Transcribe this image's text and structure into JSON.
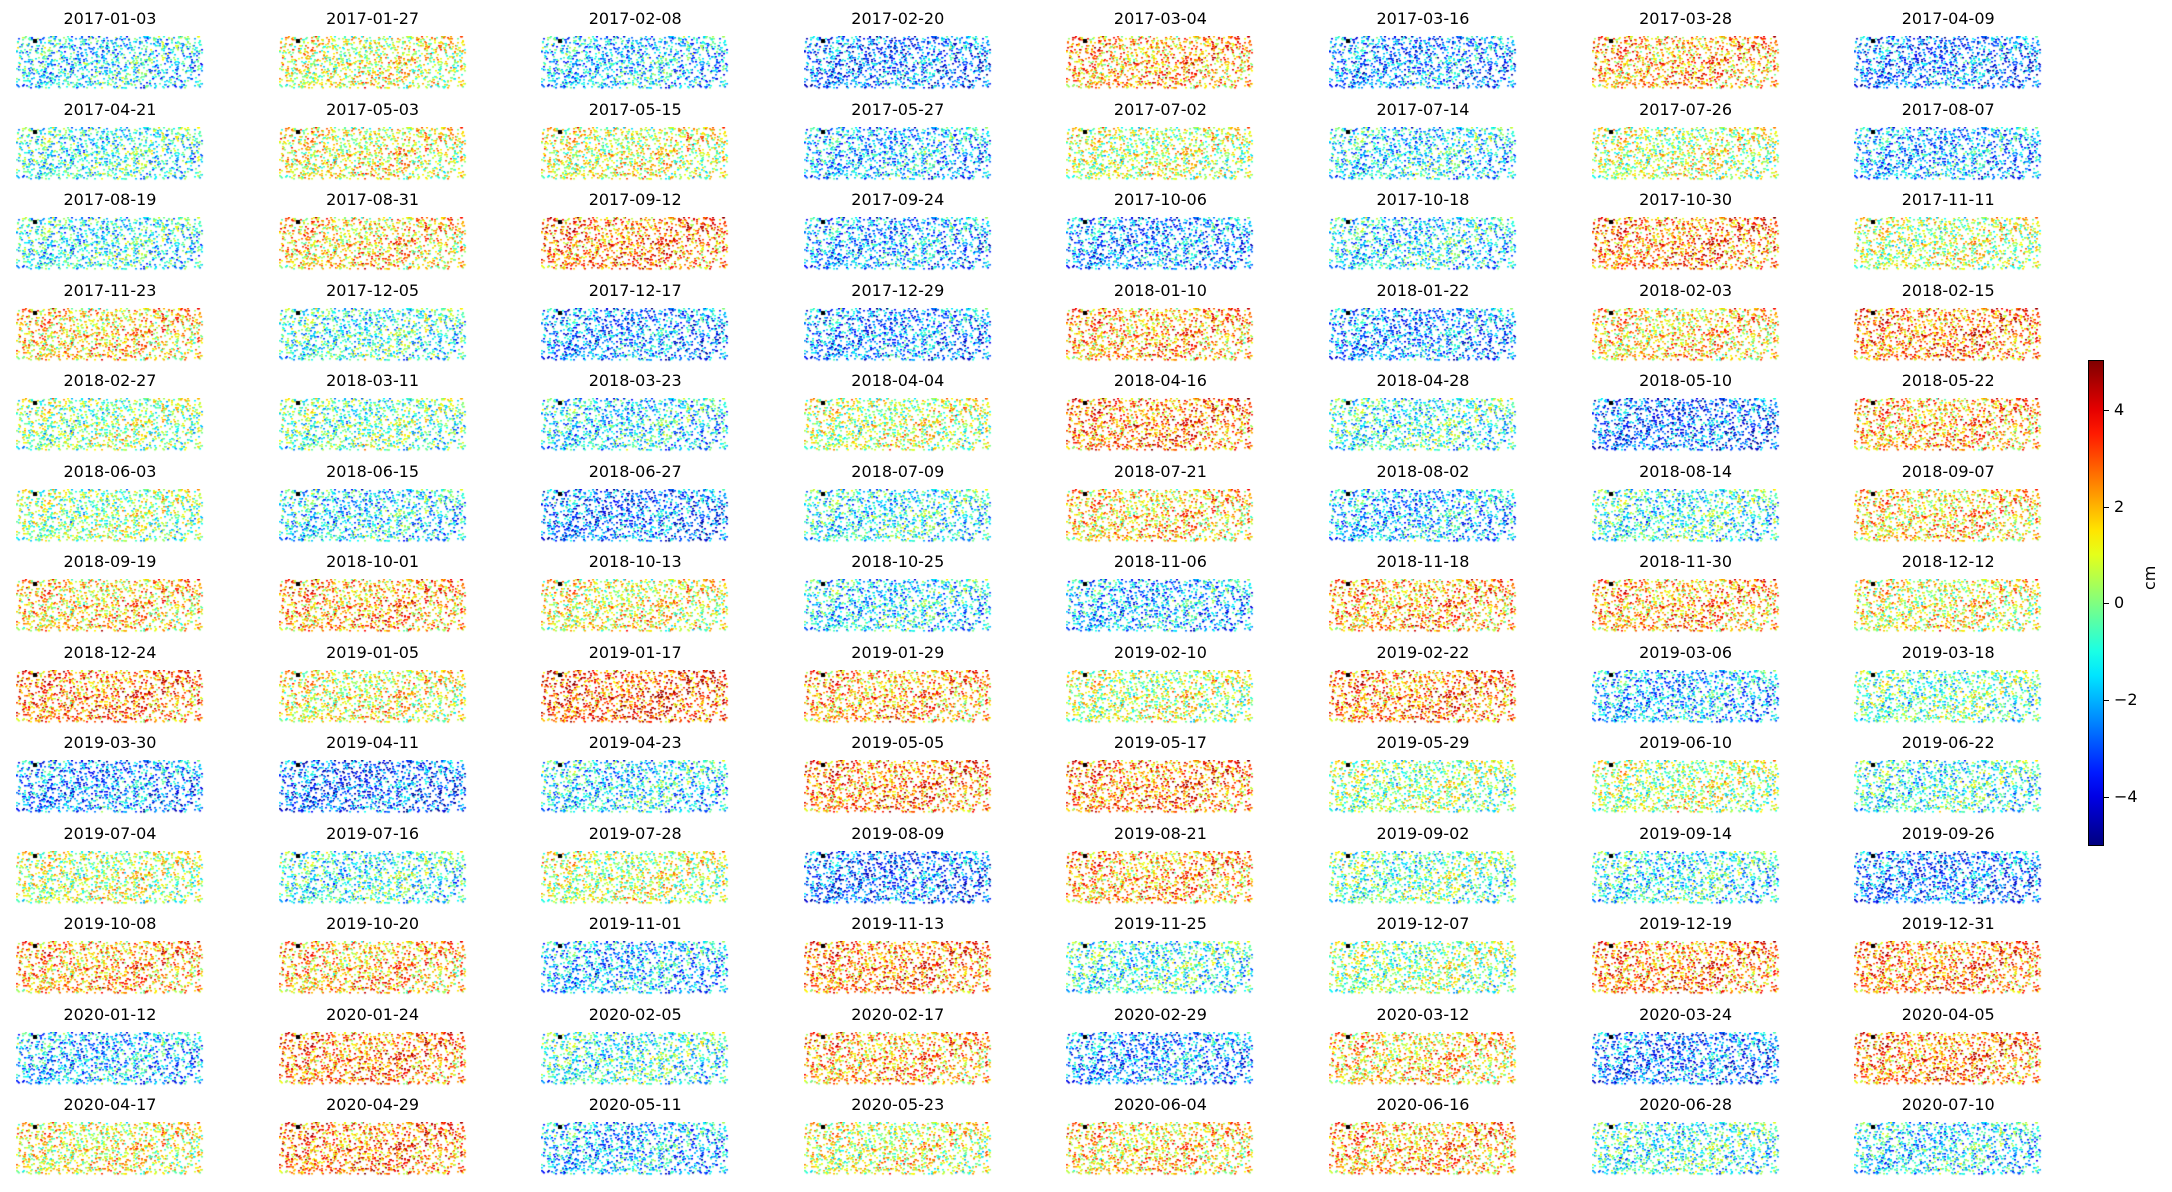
{
  "chart_data": {
    "type": "scatter",
    "description": "Small-multiple displacement maps, one per acquisition date",
    "panel_titles": [
      "2017-01-03",
      "2017-01-27",
      "2017-02-08",
      "2017-02-20",
      "2017-03-04",
      "2017-03-16",
      "2017-03-28",
      "2017-04-09",
      "2017-04-21",
      "2017-05-03",
      "2017-05-15",
      "2017-05-27",
      "2017-07-02",
      "2017-07-14",
      "2017-07-26",
      "2017-08-07",
      "2017-08-19",
      "2017-08-31",
      "2017-09-12",
      "2017-09-24",
      "2017-10-06",
      "2017-10-18",
      "2017-10-30",
      "2017-11-11",
      "2017-11-23",
      "2017-12-05",
      "2017-12-17",
      "2017-12-29",
      "2018-01-10",
      "2018-01-22",
      "2018-02-03",
      "2018-02-15",
      "2018-02-27",
      "2018-03-11",
      "2018-03-23",
      "2018-04-04",
      "2018-04-16",
      "2018-04-28",
      "2018-05-10",
      "2018-05-22",
      "2018-06-03",
      "2018-06-15",
      "2018-06-27",
      "2018-07-09",
      "2018-07-21",
      "2018-08-02",
      "2018-08-14",
      "2018-09-07",
      "2018-09-19",
      "2018-10-01",
      "2018-10-13",
      "2018-10-25",
      "2018-11-06",
      "2018-11-18",
      "2018-11-30",
      "2018-12-12",
      "2018-12-24",
      "2019-01-05",
      "2019-01-17",
      "2019-01-29",
      "2019-02-10",
      "2019-02-22",
      "2019-03-06",
      "2019-03-18",
      "2019-03-30",
      "2019-04-11",
      "2019-04-23",
      "2019-05-05",
      "2019-05-17",
      "2019-05-29",
      "2019-06-10",
      "2019-06-22",
      "2019-07-04",
      "2019-07-16",
      "2019-07-28",
      "2019-08-09",
      "2019-08-21",
      "2019-09-02",
      "2019-09-14",
      "2019-09-26",
      "2019-10-08",
      "2019-10-20",
      "2019-11-01",
      "2019-11-13",
      "2019-11-25",
      "2019-12-07",
      "2019-12-19",
      "2019-12-31",
      "2020-01-12",
      "2020-01-24",
      "2020-02-05",
      "2020-02-17",
      "2020-02-29",
      "2020-03-12",
      "2020-03-24",
      "2020-04-05",
      "2020-04-17",
      "2020-04-29",
      "2020-05-11",
      "2020-05-23",
      "2020-06-04",
      "2020-06-16",
      "2020-06-28",
      "2020-07-10"
    ],
    "panel_mean_cm": [
      -1.5,
      0.8,
      -1.8,
      -2.8,
      2.0,
      -2.5,
      2.0,
      -2.8,
      -1.0,
      1.0,
      0.8,
      -2.0,
      0.5,
      -1.5,
      0.5,
      -2.2,
      -1.2,
      1.5,
      2.5,
      -2.2,
      -2.5,
      -1.5,
      2.5,
      0.5,
      1.5,
      -1.0,
      -2.5,
      -2.5,
      2.0,
      -2.5,
      1.5,
      2.5,
      0.0,
      -0.5,
      -1.5,
      0.5,
      2.5,
      -1.0,
      -3.0,
      2.0,
      0.0,
      -1.5,
      -2.8,
      -1.2,
      1.5,
      -2.0,
      -1.0,
      1.5,
      1.5,
      2.0,
      1.0,
      -1.5,
      -2.0,
      2.0,
      2.0,
      1.0,
      2.5,
      1.0,
      3.0,
      2.0,
      0.5,
      2.5,
      -2.0,
      -0.5,
      -2.5,
      -3.0,
      -1.5,
      2.5,
      2.5,
      0.0,
      0.3,
      -1.0,
      0.5,
      -1.0,
      0.5,
      -3.0,
      2.0,
      -0.5,
      -1.2,
      -2.8,
      2.0,
      1.8,
      -2.0,
      2.5,
      -1.0,
      0.0,
      2.5,
      2.5,
      -2.0,
      2.5,
      -1.0,
      2.0,
      -2.5,
      1.5,
      -2.8,
      2.5,
      1.0,
      2.5,
      -2.0,
      0.8,
      1.5,
      2.0,
      -1.0,
      -1.5
    ],
    "value_range": [
      -5,
      5
    ],
    "colormap": "jet",
    "colorbar": {
      "label": "cm",
      "ticks": [
        4,
        2,
        0,
        -2,
        -4
      ],
      "tick_labels": [
        "4",
        "2",
        "0",
        "−2",
        "−4"
      ]
    },
    "grid": false,
    "axes_visible": false,
    "reference_marker_color": "#000000",
    "layout": {
      "rows": 13,
      "cols": 8
    }
  }
}
